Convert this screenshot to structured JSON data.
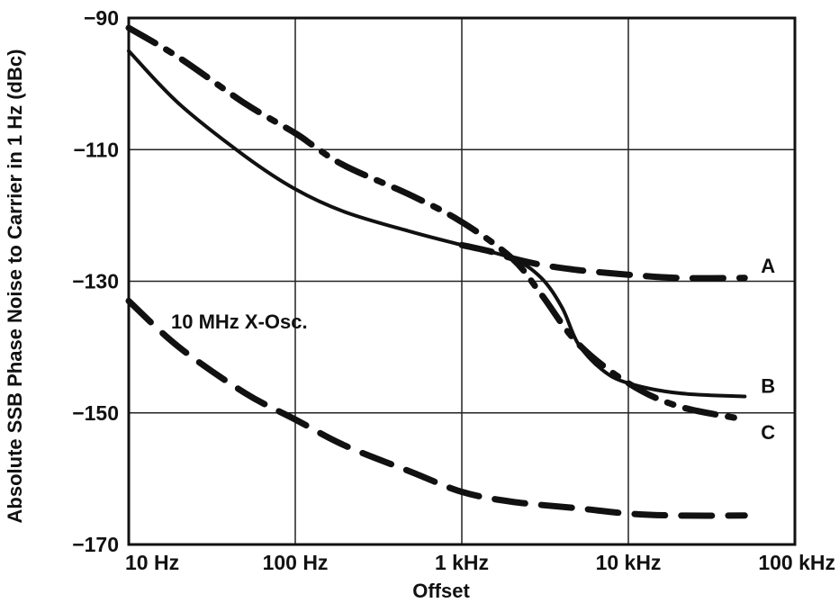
{
  "chart_data": {
    "type": "line",
    "title": "",
    "xlabel": "Offset",
    "ylabel": "Absolute SSB Phase Noise to Carrier in 1 Hz (dBc)",
    "xscale": "log",
    "xlim": [
      10,
      100000
    ],
    "ylim": [
      -170,
      -90
    ],
    "grid": true,
    "legend": "inline labels at right end of curves",
    "x_ticks": [
      10,
      100,
      1000,
      10000,
      100000
    ],
    "x_tick_labels": [
      "10 Hz",
      "100 Hz",
      "1 kHz",
      "10 kHz",
      "100 kHz"
    ],
    "y_ticks": [
      -90,
      -110,
      -130,
      -150,
      -170
    ],
    "y_tick_labels": [
      "−90",
      "−110",
      "−130",
      "−150",
      "−170"
    ],
    "annotations": [
      {
        "text": "10 MHz X-Osc."
      }
    ],
    "series": [
      {
        "name": "A",
        "style": "dashed",
        "x": [
          1000,
          1500,
          2000,
          3000,
          5000,
          10000,
          20000,
          50000
        ],
        "y": [
          -124.5,
          -125.5,
          -126.5,
          -127.5,
          -128.3,
          -129,
          -129.5,
          -129.5
        ]
      },
      {
        "name": "B",
        "style": "solid",
        "x": [
          10,
          20,
          50,
          100,
          200,
          500,
          1000,
          2000,
          3000,
          4000,
          5000,
          7000,
          10000,
          20000,
          50000
        ],
        "y": [
          -95,
          -103,
          -111,
          -116,
          -119.5,
          -122.5,
          -124.5,
          -126.5,
          -129.5,
          -134,
          -139.5,
          -143.5,
          -145.5,
          -147,
          -147.5
        ]
      },
      {
        "name": "C",
        "style": "dash-dot",
        "x": [
          10,
          20,
          50,
          100,
          130,
          200,
          500,
          1000,
          2000,
          3000,
          5000,
          10000,
          20000,
          50000
        ],
        "y": [
          -91.5,
          -96,
          -103,
          -107.5,
          -109.5,
          -112.5,
          -117,
          -121,
          -126.5,
          -132,
          -139.5,
          -145.5,
          -149,
          -151
        ]
      },
      {
        "name": "10 MHz X-Osc.",
        "style": "dashed",
        "x": [
          10,
          20,
          50,
          100,
          200,
          500,
          1000,
          2000,
          5000,
          10000,
          20000,
          50000
        ],
        "y": [
          -133,
          -140,
          -147,
          -151,
          -155,
          -159,
          -162,
          -163.5,
          -164.5,
          -165.3,
          -165.6,
          -165.6
        ]
      }
    ]
  }
}
